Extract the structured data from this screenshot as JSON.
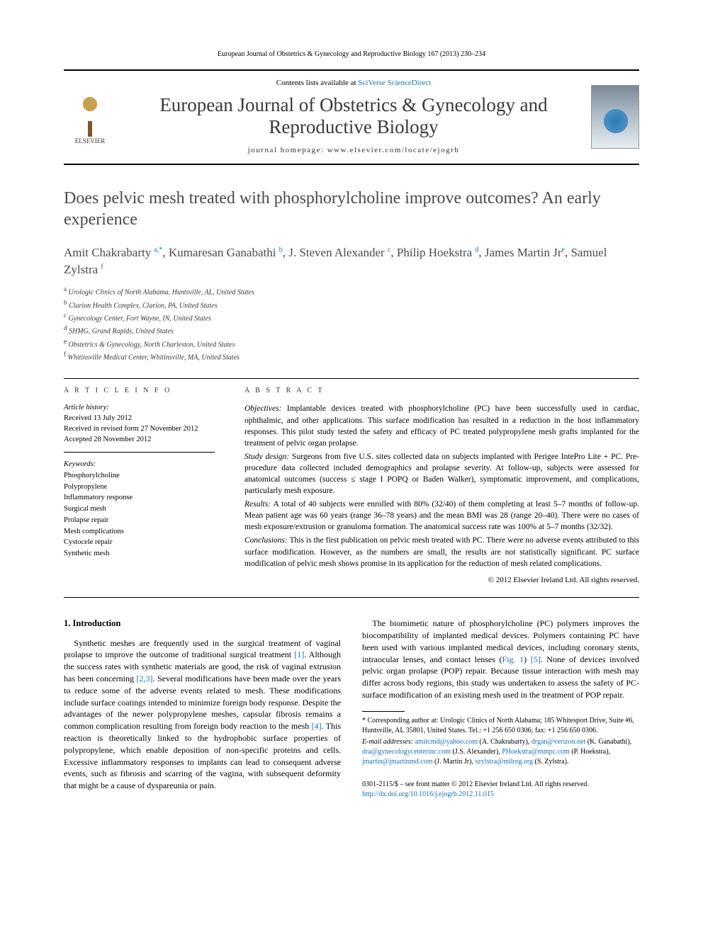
{
  "running_head": "European Journal of Obstetrics & Gynecology and Reproductive Biology 167 (2013) 230–234",
  "masthead": {
    "contents_prefix": "Contents lists available at ",
    "contents_link": "SciVerse ScienceDirect",
    "journal_name": "European Journal of Obstetrics & Gynecology and Reproductive Biology",
    "homepage_label": "journal homepage: www.elsevier.com/locate/ejogrb",
    "publisher_label": "ELSEVIER"
  },
  "title": "Does pelvic mesh treated with phosphorylcholine improve outcomes? An early experience",
  "authors_html": "Amit Chakrabarty <sup>a,*</sup>, Kumaresan Ganabathi <sup>b</sup>, J. Steven Alexander <sup>c</sup>, Philip Hoekstra <sup>d</sup>, James Martin Jr<sup>e</sup>, Samuel Zylstra <sup>f</sup>",
  "affiliations": [
    "a Urologic Clinics of North Alabama, Huntsville, AL, United States",
    "b Clarion Health Complex, Clarion, PA, United States",
    "c Gynecology Center, Fort Wayne, IN, United States",
    "d SHMG, Grand Rapids, United States",
    "e Obstetrics & Gynecology, North Charleston, United States",
    "f Whitinsville Medical Center, Whitinsville, MA, United States"
  ],
  "article_info": {
    "heading": "A R T I C L E   I N F O",
    "history_label": "Article history:",
    "history": [
      "Received 13 July 2012",
      "Received in revised form 27 November 2012",
      "Accepted 28 November 2012"
    ],
    "keywords_label": "Keywords:",
    "keywords": [
      "Phosphorylcholine",
      "Polypropylene",
      "Inflammatory response",
      "Surgical mesh",
      "Prolapse repair",
      "Mesh complications",
      "Cystocele repair",
      "Synthetic mesh"
    ]
  },
  "abstract": {
    "heading": "A B S T R A C T",
    "sections": [
      {
        "label": "Objectives:",
        "text": " Implantable devices treated with phosphorylcholine (PC) have been successfully used in cardiac, ophthalmic, and other applications. This surface modification has resulted in a reduction in the host inflammatory responses. This pilot study tested the safety and efficacy of PC treated polypropylene mesh grafts implanted for the treatment of pelvic organ prolapse."
      },
      {
        "label": "Study design:",
        "text": " Surgeons from five U.S. sites collected data on subjects implanted with Perigee IntePro Lite + PC. Pre-procedure data collected included demographics and prolapse severity. At follow-up, subjects were assessed for anatomical outcomes (success ≤ stage I POPQ or Baden Walker), symptomatic improvement, and complications, particularly mesh exposure."
      },
      {
        "label": "Results:",
        "text": " A total of 40 subjects were enrolled with 80% (32/40) of them completing at least 5–7 months of follow-up. Mean patient age was 60 years (range 36–78 years) and the mean BMI was 28 (range 20–40). There were no cases of mesh exposure/extrusion or granuloma formation. The anatomical success rate was 100% at 5–7 months (32/32)."
      },
      {
        "label": "Conclusions:",
        "text": " This is the first publication on pelvic mesh treated with PC. There were no adverse events attributed to this surface modification. However, as the numbers are small, the results are not statistically significant. PC surface modification of pelvic mesh shows promise in its application for the reduction of mesh related complications."
      }
    ],
    "copyright": "© 2012 Elsevier Ireland Ltd. All rights reserved."
  },
  "body": {
    "section_number": "1.",
    "section_title": "Introduction",
    "para1_a": "Synthetic meshes are frequently used in the surgical treatment of vaginal prolapse to improve the outcome of traditional surgical treatment ",
    "ref1": "[1]",
    "para1_b": ". Although the success rates with synthetic materials are good, the risk of vaginal extrusion has been concerning ",
    "ref23": "[2,3]",
    "para1_c": ". Several modifications have been made over the years to reduce some of the adverse events related to mesh. These modifications include surface coatings intended to minimize foreign body response. ",
    "para1_d": "Despite the advantages of the newer polypropylene meshes, capsular fibrosis remains a common complication resulting from foreign body reaction to the mesh ",
    "ref4": "[4]",
    "para1_e": ". This reaction is theoretically linked to the hydrophobic surface properties of polypropylene, which enable deposition of non-specific proteins and cells. Excessive inflammatory responses to implants can lead to consequent adverse events, such as fibrosis and scarring of the vagina, with subsequent deformity that might be a cause of dyspareunia or pain.",
    "para2_a": "The biomimetic nature of phosphorylcholine (PC) polymers improves the biocompatibility of implanted medical devices. Polymers containing PC have been used with various implanted medical devices, including coronary stents, intraocular lenses, and contact lenses (",
    "fig1": "Fig. 1",
    "para2_b": ") ",
    "ref5": "[5]",
    "para2_c": ". None of devices involved pelvic organ prolapse (POP) repair. Because tissue interaction with mesh may differ across body regions, this study was undertaken to assess the safety of PC-surface modification of an existing mesh used in the treatment of POP repair."
  },
  "footnotes": {
    "corresponding": "* Corresponding author at: Urologic Clinics of North Alabama; 185 Whitesport Drive, Suite #6, Huntsville, AL 35801, United States. Tel.: +1 256 650 0306; fax: +1 256 650 0306.",
    "emails_label": "E-mail addresses: ",
    "emails": [
      {
        "addr": "amitcmd@yahoo.com",
        "who": " (A. Chakrabarty), "
      },
      {
        "addr": "drgan@verizon.net",
        "who": " (K. Ganabathi), "
      },
      {
        "addr": "dra@gynecologycenterinc.com",
        "who": " (J.S. Alexander), "
      },
      {
        "addr": "PHoekstra@mmpc.com",
        "who": " (P. Hoekstra), "
      },
      {
        "addr": "jmartin@jmartinmd.com",
        "who": " (J. Martin Jr), "
      },
      {
        "addr": "szylstra@milreg.org",
        "who": " (S. Zylstra)."
      }
    ]
  },
  "footer": {
    "issn_line": "0301-2115/$ – see front matter © 2012 Elsevier Ireland Ltd. All rights reserved.",
    "doi": "http://dx.doi.org/10.1016/j.ejogrb.2012.11.015"
  },
  "colors": {
    "link": "#1671b9",
    "text": "#000000",
    "title_gray": "#4a4a4a"
  }
}
